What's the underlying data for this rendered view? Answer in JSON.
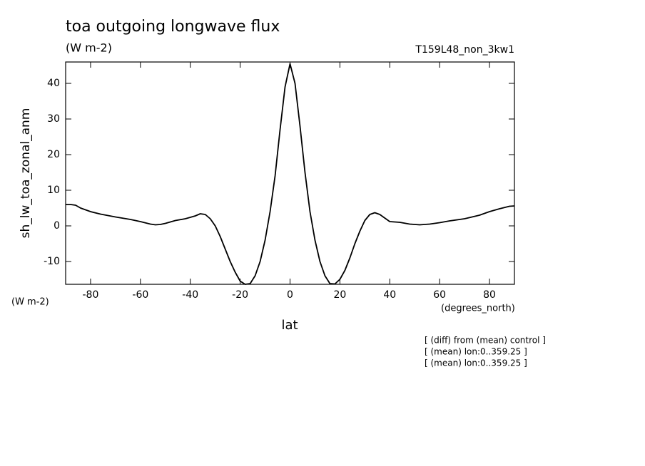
{
  "chart_data": {
    "type": "line",
    "title": "toa outgoing longwave flux",
    "subtitle": "(W m-2)",
    "run_label": "T159L48_non_3kw1",
    "y_label": "sh_lw_toa_zonal_anm",
    "y_units": "(W m-2)",
    "x_label": "lat",
    "x_units": "(degrees_north)",
    "notes": [
      "[ (diff) from (mean) control ]",
      "[ (mean) lon:0..359.25 ]",
      "[ (mean) lon:0..359.25 ]"
    ],
    "color": "#000000",
    "x": [
      -90,
      -88,
      -86,
      -84,
      -80,
      -76,
      -70,
      -64,
      -60,
      -56,
      -54,
      -52,
      -50,
      -46,
      -42,
      -38,
      -36,
      -34,
      -32,
      -30,
      -28,
      -26,
      -24,
      -22,
      -20,
      -18,
      -16,
      -14,
      -12,
      -10,
      -8,
      -6,
      -4,
      -2,
      0,
      2,
      4,
      6,
      8,
      10,
      12,
      14,
      16,
      18,
      20,
      22,
      24,
      26,
      28,
      30,
      32,
      34,
      36,
      38,
      40,
      44,
      48,
      52,
      56,
      60,
      64,
      70,
      76,
      80,
      84,
      88,
      90
    ],
    "values": [
      6,
      6,
      5.8,
      5,
      4,
      3.3,
      2.5,
      1.8,
      1.2,
      0.5,
      0.3,
      0.4,
      0.7,
      1.5,
      2,
      2.8,
      3.4,
      3.2,
      2,
      0,
      -3,
      -6.5,
      -10,
      -13,
      -15.5,
      -16.4,
      -16.2,
      -14,
      -10,
      -4,
      4,
      14,
      27,
      39,
      45.5,
      40,
      28,
      15,
      4,
      -4,
      -10,
      -14,
      -16.2,
      -16.3,
      -15,
      -12.5,
      -9,
      -5,
      -1.5,
      1.5,
      3.2,
      3.7,
      3.2,
      2.2,
      1.2,
      1,
      0.5,
      0.3,
      0.5,
      0.9,
      1.4,
      2,
      3,
      4,
      4.8,
      5.5,
      5.6
    ],
    "xlim": [
      -90,
      90
    ],
    "ylim": [
      -16.4,
      46
    ],
    "xticks": [
      -80,
      -60,
      -40,
      -20,
      0,
      20,
      40,
      60,
      80
    ],
    "yticks": [
      -10,
      0,
      10,
      20,
      30,
      40
    ]
  }
}
